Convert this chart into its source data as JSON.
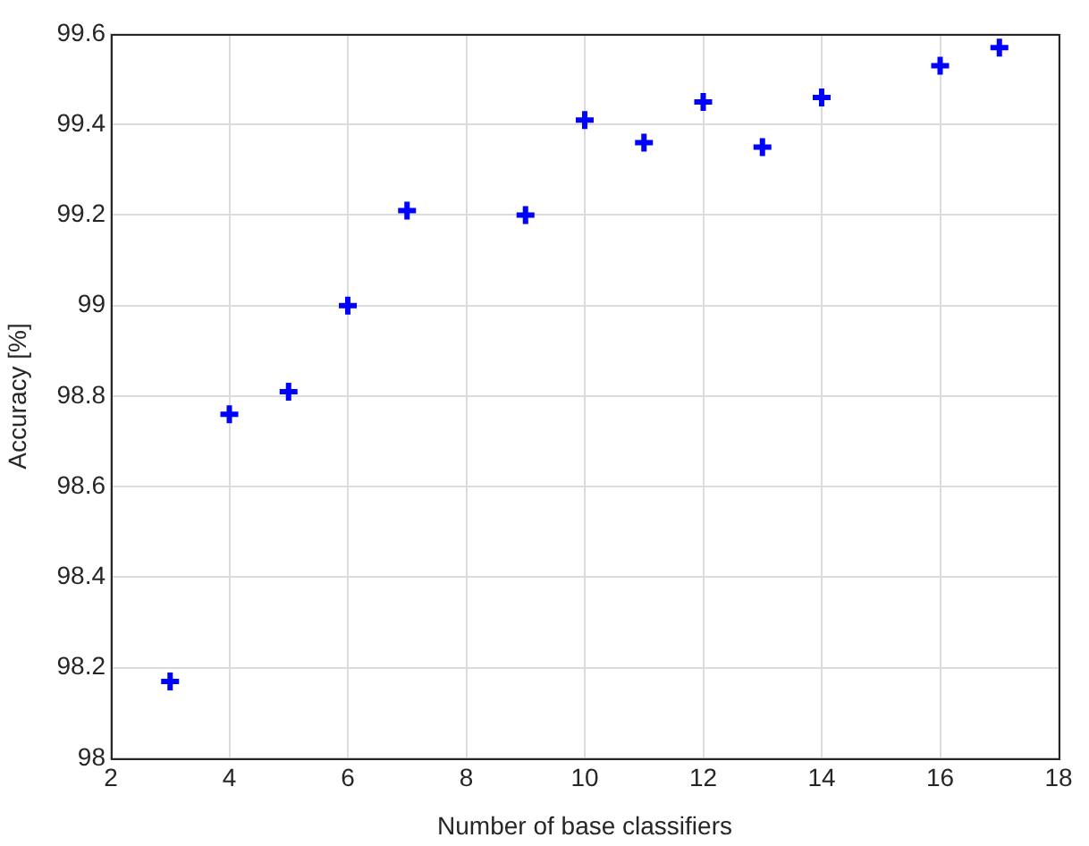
{
  "chart_data": {
    "type": "scatter",
    "xlabel": "Number of base classifiers",
    "ylabel": "Accuracy [%]",
    "x": [
      3,
      4,
      5,
      6,
      7,
      9,
      10,
      11,
      12,
      13,
      14,
      16,
      17
    ],
    "series": [
      {
        "color": "#0000ff",
        "values": [
          98.17,
          98.76,
          98.81,
          99.0,
          99.21,
          99.2,
          99.41,
          99.36,
          99.45,
          99.35,
          99.46,
          99.53,
          99.57
        ]
      }
    ],
    "xlim": [
      2,
      18
    ],
    "xticks": [
      2,
      4,
      6,
      8,
      10,
      12,
      14,
      16,
      18
    ],
    "ylim": [
      98,
      99.6
    ],
    "yticks": [
      98,
      98.2,
      98.4,
      98.6,
      98.8,
      99,
      99.2,
      99.4,
      99.6
    ],
    "grid": true,
    "marker": "cross"
  }
}
